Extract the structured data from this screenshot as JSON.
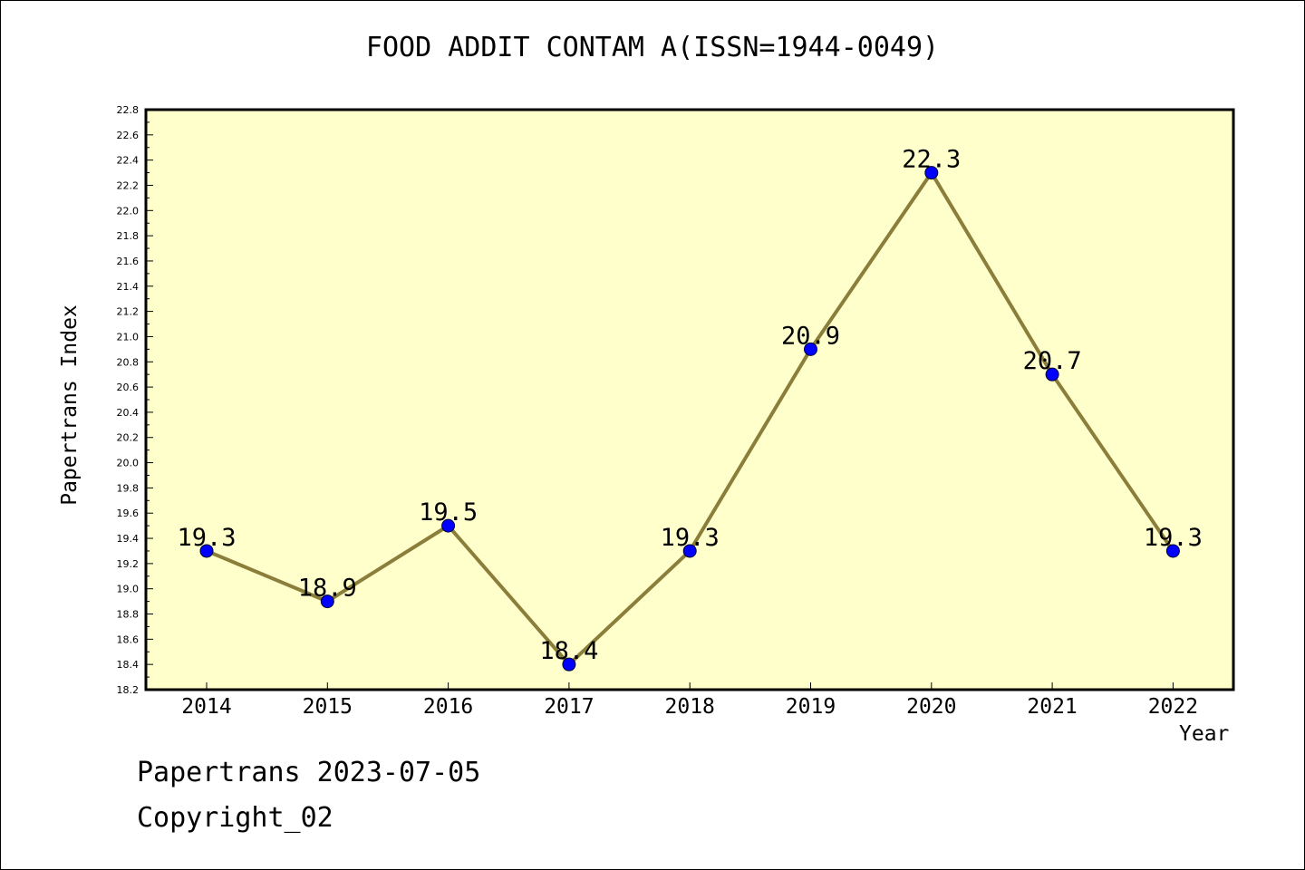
{
  "colors": {
    "plot_background": "#ffffcc",
    "line": "#8b7d3a",
    "marker": "#0000ff",
    "axis": "#000000"
  },
  "footer": {
    "date_text": "Papertrans 2023-07-05",
    "copyright_text": "Copyright_02"
  },
  "chart_data": {
    "type": "line",
    "title": "FOOD ADDIT CONTAM A(ISSN=1944-0049)",
    "xlabel": "Year",
    "ylabel": "Papertrans Index",
    "categories": [
      "2014",
      "2015",
      "2016",
      "2017",
      "2018",
      "2019",
      "2020",
      "2021",
      "2022"
    ],
    "series": [
      {
        "values": [
          19.3,
          18.9,
          19.5,
          18.4,
          19.3,
          20.9,
          22.3,
          20.7,
          19.3
        ],
        "labels": [
          "19.3",
          "18.9",
          "19.5",
          "18.4",
          "19.3",
          "20.9",
          "22.3",
          "20.7",
          "19.3"
        ]
      }
    ],
    "ylim": [
      18.2,
      22.8
    ],
    "yticks": [
      "18.2",
      "18.4",
      "18.6",
      "18.8",
      "19.0",
      "19.2",
      "19.4",
      "19.6",
      "19.8",
      "20.0",
      "20.2",
      "20.4",
      "20.6",
      "20.8",
      "21.0",
      "21.2",
      "21.4",
      "21.6",
      "21.8",
      "22.0",
      "22.2",
      "22.4",
      "22.6",
      "22.8"
    ],
    "grid": false,
    "legend": "none"
  }
}
